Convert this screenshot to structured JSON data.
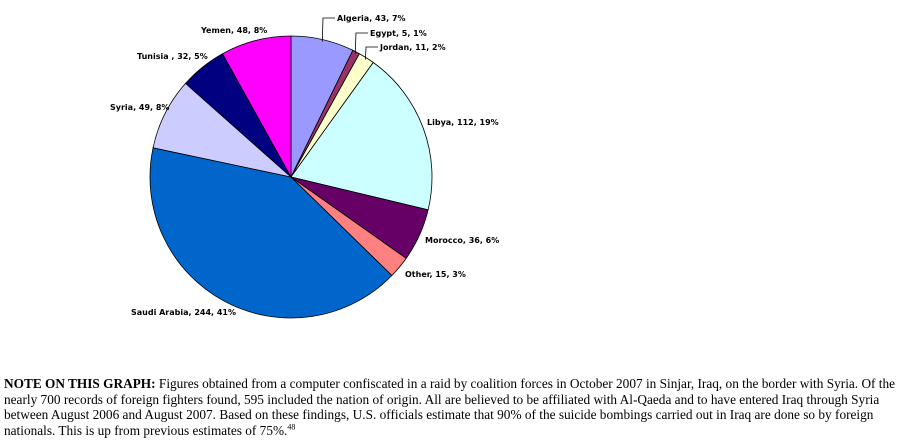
{
  "chart_data": {
    "type": "pie",
    "slices": [
      {
        "label": "Algeria, 43, 7%",
        "name": "Algeria",
        "value": 43,
        "percent": 7,
        "color": "#9999ff"
      },
      {
        "label": "Egypt, 5, 1%",
        "name": "Egypt",
        "value": 5,
        "percent": 1,
        "color": "#993366"
      },
      {
        "label": "Jordan, 11, 2%",
        "name": "Jordan",
        "value": 11,
        "percent": 2,
        "color": "#ffffcc"
      },
      {
        "label": "Libya, 112, 19%",
        "name": "Libya",
        "value": 112,
        "percent": 19,
        "color": "#ccffff"
      },
      {
        "label": "Morocco, 36, 6%",
        "name": "Morocco",
        "value": 36,
        "percent": 6,
        "color": "#660066"
      },
      {
        "label": "Other, 15, 3%",
        "name": "Other",
        "value": 15,
        "percent": 3,
        "color": "#ff8080"
      },
      {
        "label": "Saudi Arabia, 244, 41%",
        "name": "Saudi Arabia",
        "value": 244,
        "percent": 41,
        "color": "#0066cc"
      },
      {
        "label": "Syria, 49, 8%",
        "name": "Syria",
        "value": 49,
        "percent": 8,
        "color": "#ccccff"
      },
      {
        "label": "Tunisia , 32, 5%",
        "name": "Tunisia",
        "value": 32,
        "percent": 5,
        "color": "#000080"
      },
      {
        "label": "Yemen, 48, 8%",
        "name": "Yemen",
        "value": 48,
        "percent": 8,
        "color": "#ff00ff"
      }
    ],
    "total": 595,
    "start": "12 o'clock",
    "direction": "clockwise",
    "label_style": "outside with leader lines for small slices"
  },
  "note": {
    "heading": "NOTE ON THIS GRAPH:",
    "body": " Figures obtained from a computer confiscated in a raid by coalition forces in October 2007 in Sinjar, Iraq, on the border with Syria. Of the nearly 700 records of foreign fighters found, 595 included the nation of origin. All are believed to be affiliated with Al-Qaeda and to have entered Iraq through Syria between August 2006 and August 2007. Based on these findings, U.S. officials estimate that 90% of the suicide bombings carried out in Iraq are done so by foreign nationals. This is up from previous estimates of 75%.",
    "footnote": "48"
  }
}
